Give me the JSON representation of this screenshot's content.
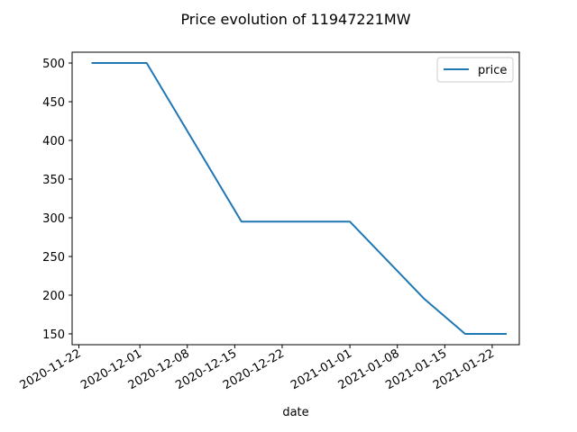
{
  "chart_data": {
    "type": "line",
    "title": "Price evolution of 11947221MW",
    "xlabel": "date",
    "ylabel": "",
    "x_axis_type": "date",
    "xlim": [
      "2020-11-21",
      "2021-01-26"
    ],
    "ylim": [
      136,
      514
    ],
    "x_ticks": [
      "2020-11-22",
      "2020-12-01",
      "2020-12-08",
      "2020-12-15",
      "2020-12-22",
      "2021-01-01",
      "2021-01-08",
      "2021-01-15",
      "2021-01-22"
    ],
    "y_ticks": [
      150,
      200,
      250,
      300,
      350,
      400,
      450,
      500
    ],
    "legend": {
      "position": "top-right",
      "entries": [
        {
          "name": "price",
          "color": "#1f77b4"
        }
      ]
    },
    "series": [
      {
        "name": "price",
        "color": "#1f77b4",
        "points": [
          {
            "x": "2020-11-24",
            "y": 500
          },
          {
            "x": "2020-12-02",
            "y": 500
          },
          {
            "x": "2020-12-16",
            "y": 295
          },
          {
            "x": "2021-01-01",
            "y": 295
          },
          {
            "x": "2021-01-12",
            "y": 195
          },
          {
            "x": "2021-01-18",
            "y": 150
          },
          {
            "x": "2021-01-24",
            "y": 150
          }
        ]
      }
    ],
    "grid": false
  }
}
